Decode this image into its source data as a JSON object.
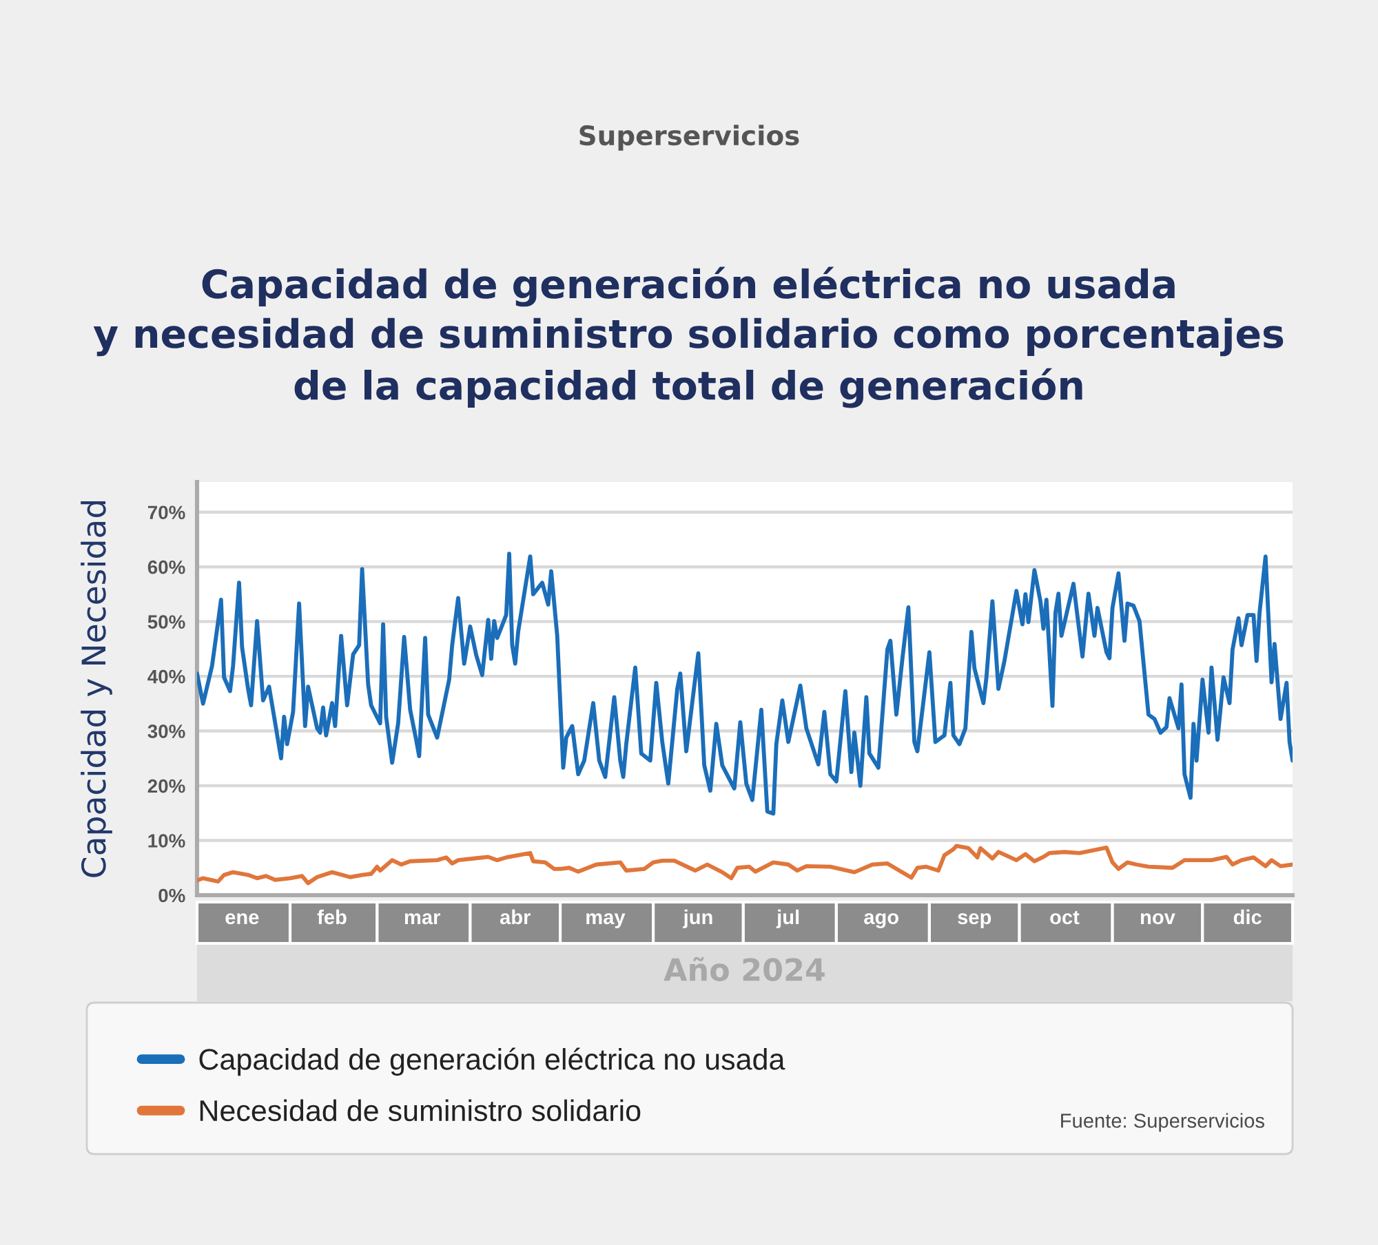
{
  "chart_data": {
    "type": "line",
    "title": "Capacidad de generación eléctrica no usada\ny necesidad de suministro solidario como porcentajes\nde la capacidad total de generación",
    "ylabel": "Capacidad y Necesidad",
    "xlabel": "Año 2024",
    "annotations": [
      "Superservicios",
      "Fuente: Superservicios"
    ],
    "xlim": [
      "2024-01-01",
      "2024-12-31"
    ],
    "xticks": [
      {
        "value": "2024-01-16",
        "label": "ene"
      },
      {
        "value": "2024-02-15",
        "label": "feb"
      },
      {
        "value": "2024-03-16",
        "label": "mar"
      },
      {
        "value": "2024-04-16",
        "label": "abr"
      },
      {
        "value": "2024-05-16",
        "label": "may"
      },
      {
        "value": "2024-06-16",
        "label": "jun"
      },
      {
        "value": "2024-07-16",
        "label": "jul"
      },
      {
        "value": "2024-08-16",
        "label": "ago"
      },
      {
        "value": "2024-09-16",
        "label": "sep"
      },
      {
        "value": "2024-10-16",
        "label": "oct"
      },
      {
        "value": "2024-11-16",
        "label": "nov"
      },
      {
        "value": "2024-12-16",
        "label": "dic"
      }
    ],
    "ylim": [
      0,
      75.5
    ],
    "yticks": [
      {
        "value": 0,
        "label": "0%"
      },
      {
        "value": 10,
        "label": "10%"
      },
      {
        "value": 20,
        "label": "20%"
      },
      {
        "value": 30,
        "label": "30%"
      },
      {
        "value": 40,
        "label": "40%"
      },
      {
        "value": 50,
        "label": "50%"
      },
      {
        "value": 60,
        "label": "60%"
      },
      {
        "value": 70,
        "label": "70%"
      }
    ],
    "grid": "y",
    "legend": "bottom",
    "line_style": "solid",
    "series": [
      {
        "name": "Capacidad de generación eléctrica no usada",
        "color": "#1b6eb9",
        "x": [
          "2024-01-01",
          "2024-01-03",
          "2024-01-06",
          "2024-01-08",
          "2024-01-09",
          "2024-01-10",
          "2024-01-12",
          "2024-01-13",
          "2024-01-15",
          "2024-01-16",
          "2024-01-18",
          "2024-01-19",
          "2024-01-21",
          "2024-01-23",
          "2024-01-25",
          "2024-01-29",
          "2024-01-30",
          "2024-01-31",
          "2024-02-02",
          "2024-02-04",
          "2024-02-06",
          "2024-02-07",
          "2024-02-10",
          "2024-02-11",
          "2024-02-12",
          "2024-02-13",
          "2024-02-15",
          "2024-02-16",
          "2024-02-18",
          "2024-02-20",
          "2024-02-22",
          "2024-02-24",
          "2024-02-25",
          "2024-02-27",
          "2024-02-28",
          "2024-03-02",
          "2024-03-03",
          "2024-03-04",
          "2024-03-06",
          "2024-03-08",
          "2024-03-10",
          "2024-03-12",
          "2024-03-14",
          "2024-03-15",
          "2024-03-17",
          "2024-03-18",
          "2024-03-21",
          "2024-03-25",
          "2024-03-26",
          "2024-03-28",
          "2024-03-30",
          "2024-04-01",
          "2024-04-03",
          "2024-04-05",
          "2024-04-07",
          "2024-04-08",
          "2024-04-09",
          "2024-04-10",
          "2024-04-13",
          "2024-04-14",
          "2024-04-15",
          "2024-04-16",
          "2024-04-17",
          "2024-04-21",
          "2024-04-22",
          "2024-04-25",
          "2024-04-27",
          "2024-04-28",
          "2024-04-30",
          "2024-05-02",
          "2024-05-03",
          "2024-05-05",
          "2024-05-07",
          "2024-05-09",
          "2024-05-12",
          "2024-05-14",
          "2024-05-16",
          "2024-05-19",
          "2024-05-21",
          "2024-05-22",
          "2024-05-23",
          "2024-05-26",
          "2024-05-28",
          "2024-05-31",
          "2024-06-02",
          "2024-06-04",
          "2024-06-06",
          "2024-06-09",
          "2024-06-10",
          "2024-06-12",
          "2024-06-16",
          "2024-06-18",
          "2024-06-20",
          "2024-06-22",
          "2024-06-24",
          "2024-06-28",
          "2024-06-30",
          "2024-07-02",
          "2024-07-04",
          "2024-07-07",
          "2024-07-09",
          "2024-07-11",
          "2024-07-12",
          "2024-07-14",
          "2024-07-16",
          "2024-07-20",
          "2024-07-22",
          "2024-07-26",
          "2024-07-28",
          "2024-07-30",
          "2024-08-01",
          "2024-08-04",
          "2024-08-06",
          "2024-08-07",
          "2024-08-09",
          "2024-08-11",
          "2024-08-12",
          "2024-08-15",
          "2024-08-18",
          "2024-08-19",
          "2024-08-21",
          "2024-08-23",
          "2024-08-25",
          "2024-08-27",
          "2024-08-28",
          "2024-09-01",
          "2024-09-03",
          "2024-09-06",
          "2024-09-08",
          "2024-09-09",
          "2024-09-11",
          "2024-09-13",
          "2024-09-15",
          "2024-09-16",
          "2024-09-19",
          "2024-09-20",
          "2024-09-22",
          "2024-09-24",
          "2024-09-26",
          "2024-09-30",
          "2024-10-02",
          "2024-10-03",
          "2024-10-04",
          "2024-10-06",
          "2024-10-08",
          "2024-10-09",
          "2024-10-10",
          "2024-10-12",
          "2024-10-13",
          "2024-10-14",
          "2024-10-15",
          "2024-10-19",
          "2024-10-22",
          "2024-10-24",
          "2024-10-26",
          "2024-10-27",
          "2024-10-30",
          "2024-10-31",
          "2024-11-01",
          "2024-11-03",
          "2024-11-05",
          "2024-11-06",
          "2024-11-08",
          "2024-11-10",
          "2024-11-13",
          "2024-11-15",
          "2024-11-17",
          "2024-11-19",
          "2024-11-20",
          "2024-11-23",
          "2024-11-24",
          "2024-11-25",
          "2024-11-27",
          "2024-11-28",
          "2024-11-29",
          "2024-12-01",
          "2024-12-03",
          "2024-12-04",
          "2024-12-06",
          "2024-12-08",
          "2024-12-10",
          "2024-12-11",
          "2024-12-13",
          "2024-12-14",
          "2024-12-16",
          "2024-12-18",
          "2024-12-19",
          "2024-12-20",
          "2024-12-22",
          "2024-12-24",
          "2024-12-25",
          "2024-12-27",
          "2024-12-29",
          "2024-12-30",
          "2024-12-31"
        ],
        "values": [
          40.5,
          35.0,
          41.9,
          49.9,
          54.0,
          39.8,
          37.3,
          41.9,
          57.1,
          45.3,
          37.7,
          34.7,
          50.1,
          35.6,
          38.1,
          25.0,
          32.6,
          27.6,
          33.5,
          53.3,
          30.9,
          38.1,
          30.5,
          29.7,
          34.3,
          29.2,
          35.1,
          30.9,
          47.4,
          34.7,
          44.0,
          45.7,
          59.6,
          38.5,
          34.7,
          31.4,
          49.5,
          32.6,
          24.2,
          31.4,
          47.2,
          33.9,
          28.4,
          25.4,
          47.0,
          33.0,
          28.8,
          39.4,
          45.7,
          54.3,
          42.3,
          49.1,
          43.9,
          40.2,
          50.3,
          43.2,
          50.1,
          47.0,
          51.2,
          62.4,
          45.7,
          42.3,
          48.2,
          61.9,
          55.0,
          57.1,
          53.1,
          59.2,
          47.4,
          23.3,
          28.8,
          30.9,
          22.1,
          24.6,
          35.1,
          24.6,
          21.6,
          36.2,
          24.6,
          21.6,
          27.6,
          41.6,
          25.9,
          24.6,
          38.8,
          28.0,
          20.4,
          37.7,
          40.5,
          26.3,
          44.2,
          23.7,
          19.1,
          31.3,
          23.7,
          19.5,
          31.6,
          20.4,
          17.4,
          33.9,
          15.3,
          14.9,
          27.6,
          35.6,
          28.0,
          38.3,
          30.5,
          23.9,
          33.5,
          22.1,
          20.8,
          37.3,
          22.5,
          29.7,
          20.0,
          36.2,
          25.9,
          23.3,
          44.9,
          46.5,
          33.0,
          43.2,
          52.6,
          28.0,
          26.3,
          44.4,
          28.0,
          29.2,
          38.8,
          29.2,
          27.6,
          30.5,
          48.1,
          41.5,
          35.1,
          39.8,
          53.7,
          37.7,
          42.8,
          55.6,
          49.5,
          55.0,
          49.9,
          59.4,
          53.7,
          48.7,
          54.0,
          34.6,
          51.6,
          55.1,
          47.4,
          56.9,
          43.6,
          55.1,
          47.4,
          52.5,
          44.4,
          43.3,
          52.5,
          58.8,
          46.5,
          53.3,
          52.9,
          50.1,
          33.0,
          32.2,
          29.7,
          30.7,
          36.0,
          30.5,
          38.5,
          22.1,
          17.8,
          31.3,
          24.6,
          39.4,
          29.7,
          41.6,
          28.4,
          39.8,
          35.1,
          44.9,
          50.6,
          45.7,
          51.2,
          51.2,
          42.8,
          51.6,
          61.9,
          38.9,
          45.9,
          32.2,
          38.8,
          28.0,
          24.6
        ]
      },
      {
        "name": "Necesidad de suministro solidario",
        "color": "#e0763b",
        "x": [
          "2024-01-01",
          "2024-01-03",
          "2024-01-08",
          "2024-01-10",
          "2024-01-13",
          "2024-01-18",
          "2024-01-21",
          "2024-01-24",
          "2024-01-27",
          "2024-02-01",
          "2024-02-05",
          "2024-02-07",
          "2024-02-10",
          "2024-02-15",
          "2024-02-21",
          "2024-02-25",
          "2024-02-28",
          "2024-03-01",
          "2024-03-02",
          "2024-03-06",
          "2024-03-09",
          "2024-03-12",
          "2024-03-21",
          "2024-03-24",
          "2024-03-26",
          "2024-03-28",
          "2024-04-02",
          "2024-04-07",
          "2024-04-10",
          "2024-04-13",
          "2024-04-21",
          "2024-04-22",
          "2024-04-26",
          "2024-04-29",
          "2024-05-01",
          "2024-05-04",
          "2024-05-07",
          "2024-05-13",
          "2024-05-21",
          "2024-05-23",
          "2024-05-29",
          "2024-06-01",
          "2024-06-04",
          "2024-06-08",
          "2024-06-15",
          "2024-06-19",
          "2024-06-24",
          "2024-06-27",
          "2024-06-29",
          "2024-07-03",
          "2024-07-05",
          "2024-07-11",
          "2024-07-16",
          "2024-07-19",
          "2024-07-22",
          "2024-07-30",
          "2024-08-07",
          "2024-08-13",
          "2024-08-18",
          "2024-08-26",
          "2024-08-28",
          "2024-08-31",
          "2024-09-04",
          "2024-09-06",
          "2024-09-09",
          "2024-09-10",
          "2024-09-14",
          "2024-09-17",
          "2024-09-18",
          "2024-09-22",
          "2024-09-24",
          "2024-09-30",
          "2024-10-03",
          "2024-10-06",
          "2024-10-09",
          "2024-10-11",
          "2024-10-16",
          "2024-10-21",
          "2024-10-30",
          "2024-11-01",
          "2024-11-03",
          "2024-11-06",
          "2024-11-09",
          "2024-11-13",
          "2024-11-21",
          "2024-11-25",
          "2024-12-04",
          "2024-12-09",
          "2024-12-11",
          "2024-12-14",
          "2024-12-18",
          "2024-12-22",
          "2024-12-24",
          "2024-12-27",
          "2024-12-31"
        ],
        "values": [
          2.7,
          3.1,
          2.5,
          3.7,
          4.2,
          3.7,
          3.1,
          3.5,
          2.8,
          3.1,
          3.5,
          2.2,
          3.3,
          4.2,
          3.3,
          3.7,
          3.9,
          5.2,
          4.5,
          6.4,
          5.6,
          6.2,
          6.4,
          6.9,
          5.8,
          6.4,
          6.7,
          7.0,
          6.4,
          6.9,
          7.7,
          6.2,
          6.0,
          4.8,
          4.8,
          5.0,
          4.3,
          5.6,
          6.0,
          4.5,
          4.8,
          6.0,
          6.3,
          6.3,
          4.5,
          5.6,
          4.2,
          3.1,
          5.0,
          5.2,
          4.3,
          6.0,
          5.6,
          4.5,
          5.3,
          5.2,
          4.2,
          5.6,
          5.8,
          3.2,
          5.0,
          5.2,
          4.5,
          7.3,
          8.4,
          9.0,
          8.6,
          6.9,
          8.6,
          6.7,
          7.9,
          6.4,
          7.5,
          6.2,
          7.0,
          7.7,
          7.9,
          7.7,
          8.7,
          6.0,
          4.8,
          6.0,
          5.6,
          5.2,
          5.0,
          6.4,
          6.4,
          7.0,
          5.6,
          6.4,
          6.9,
          5.3,
          6.4,
          5.3,
          5.6
        ]
      }
    ]
  }
}
